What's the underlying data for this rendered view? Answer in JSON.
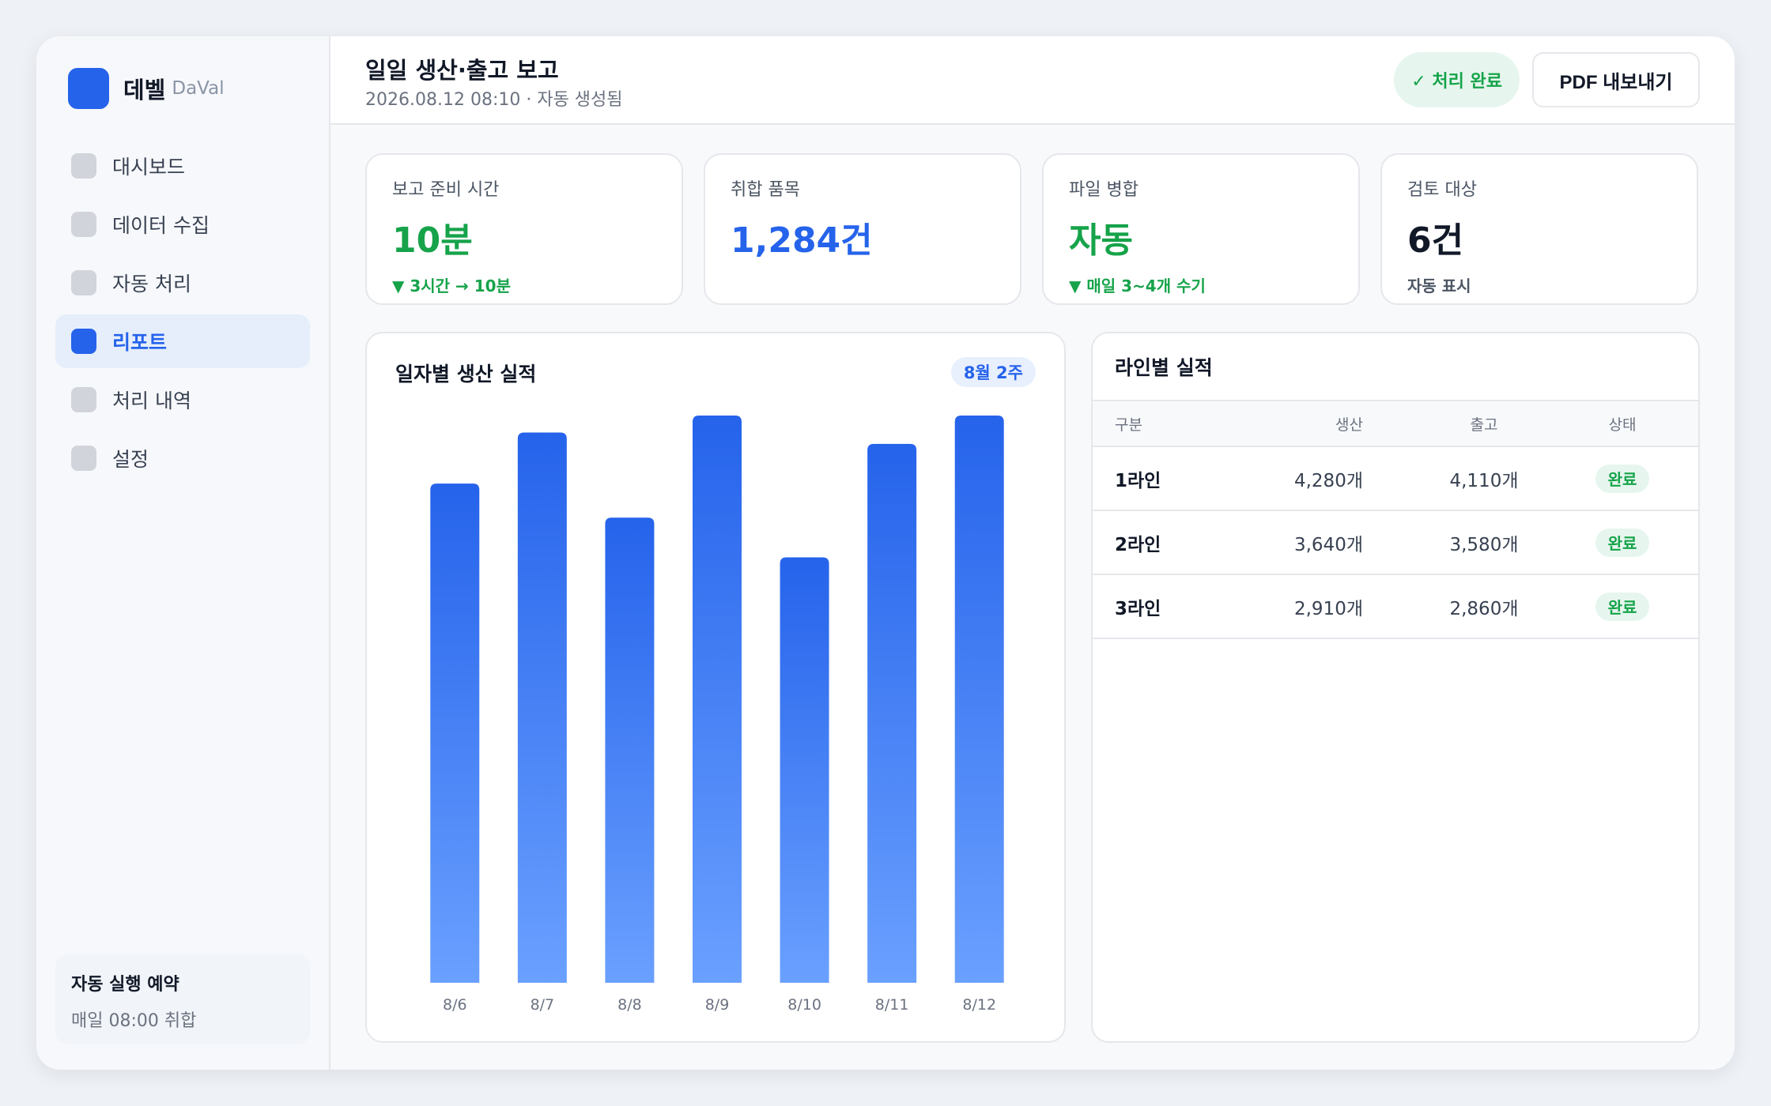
{
  "brand": {
    "name": "데벨",
    "sub": "DaVal"
  },
  "sidebar": {
    "items": [
      {
        "label": "대시보드",
        "active": false
      },
      {
        "label": "데이터 수집",
        "active": false
      },
      {
        "label": "자동 처리",
        "active": false
      },
      {
        "label": "리포트",
        "active": true
      },
      {
        "label": "처리 내역",
        "active": false
      },
      {
        "label": "설정",
        "active": false
      }
    ],
    "schedule": {
      "title": "자동 실행 예약",
      "desc": "매일 08:00 취합"
    }
  },
  "header": {
    "title": "일일 생산·출고 보고",
    "subtitle": "2026.08.12 08:10 · 자동 생성됨",
    "status_badge": "✓ 처리 완료",
    "pdf_button": "PDF 내보내기"
  },
  "kpis": [
    {
      "label": "보고 준비 시간",
      "value": "10분",
      "sub": "▼ 3시간 → 10분",
      "value_color": "#16a34a",
      "sub_color": "#16a34a"
    },
    {
      "label": "취합 품목",
      "value": "1,284건",
      "sub": "",
      "value_color": "#2563eb",
      "sub_color": "#16a34a"
    },
    {
      "label": "파일 병합",
      "value": "자동",
      "sub": "▼ 매일 3~4개 수기",
      "value_color": "#16a34a",
      "sub_color": "#16a34a"
    },
    {
      "label": "검토 대상",
      "value": "6건",
      "sub": "자동 표시",
      "value_color": "#111827",
      "sub_color": "#4b5563"
    }
  ],
  "chart": {
    "title": "일자별 생산 실적",
    "badge": "8월 2주"
  },
  "chart_data": {
    "type": "bar",
    "categories": [
      "8/6",
      "8/7",
      "8/8",
      "8/9",
      "8/10",
      "8/11",
      "8/12"
    ],
    "values": [
      88,
      97,
      82,
      100,
      75,
      95,
      100
    ],
    "ylim": [
      0,
      100
    ],
    "grid": false,
    "colors": {
      "top": "#2563eb",
      "bottom": "#6aa0ff"
    }
  },
  "table": {
    "title": "라인별 실적",
    "headers": [
      "구분",
      "생산",
      "출고",
      "상태"
    ],
    "rows": [
      {
        "name": "1라인",
        "production": "4,280개",
        "shipment": "4,110개",
        "status": "완료"
      },
      {
        "name": "2라인",
        "production": "3,640개",
        "shipment": "3,580개",
        "status": "완료"
      },
      {
        "name": "3라인",
        "production": "2,910개",
        "shipment": "2,860개",
        "status": "완료"
      }
    ]
  }
}
